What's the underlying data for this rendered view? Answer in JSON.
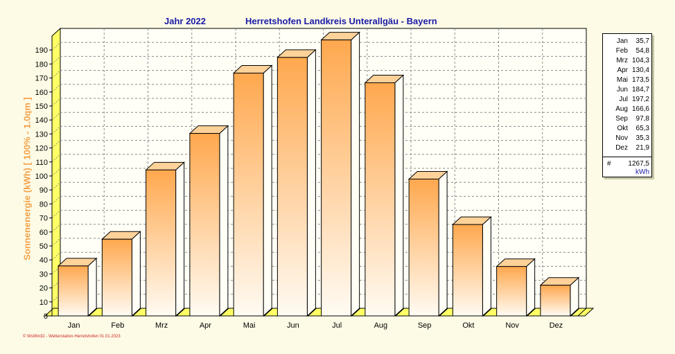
{
  "header": {
    "year_label": "Jahr  2022",
    "location_title": "Herretshofen Landkreis Unterallgäu - Bayern"
  },
  "footer": {
    "text": "© WsWin32 - Wetterstation-Herretshofen 01.01.2023"
  },
  "colors": {
    "title": "#1a1aa8",
    "ylabel": "#f3a24a",
    "bar_top": "#ffa84e",
    "bar_bottom": "#fffbf3",
    "floor": "#ffff66",
    "footer": "#cc2222"
  },
  "chart_data": {
    "type": "bar",
    "title": "Jahr  2022    Herretshofen Landkreis Unterallgäu - Bayern",
    "ylabel": "Sonnenenergie  (kWh)   [ 100% - 1.0qm ]",
    "xlabel": "",
    "categories": [
      "Jan",
      "Feb",
      "Mrz",
      "Apr",
      "Mai",
      "Jun",
      "Jul",
      "Aug",
      "Sep",
      "Okt",
      "Nov",
      "Dez"
    ],
    "values": [
      35.7,
      54.8,
      104.3,
      130.4,
      173.5,
      184.7,
      197.2,
      166.6,
      97.8,
      65.3,
      35.3,
      21.9
    ],
    "value_labels": [
      "35,7",
      "54,8",
      "104,3",
      "130,4",
      "173,5",
      "184,7",
      "197,2",
      "166,6",
      "97,8",
      "65,3",
      "35,3",
      "21,9"
    ],
    "ylim": [
      0,
      200
    ],
    "yticks": [
      0,
      10,
      20,
      30,
      40,
      50,
      60,
      70,
      80,
      90,
      100,
      110,
      120,
      130,
      140,
      150,
      160,
      170,
      180,
      190
    ],
    "grid": true,
    "legend_position": "right",
    "total_symbol": "#",
    "total": "1267,5",
    "unit": "kWh"
  }
}
